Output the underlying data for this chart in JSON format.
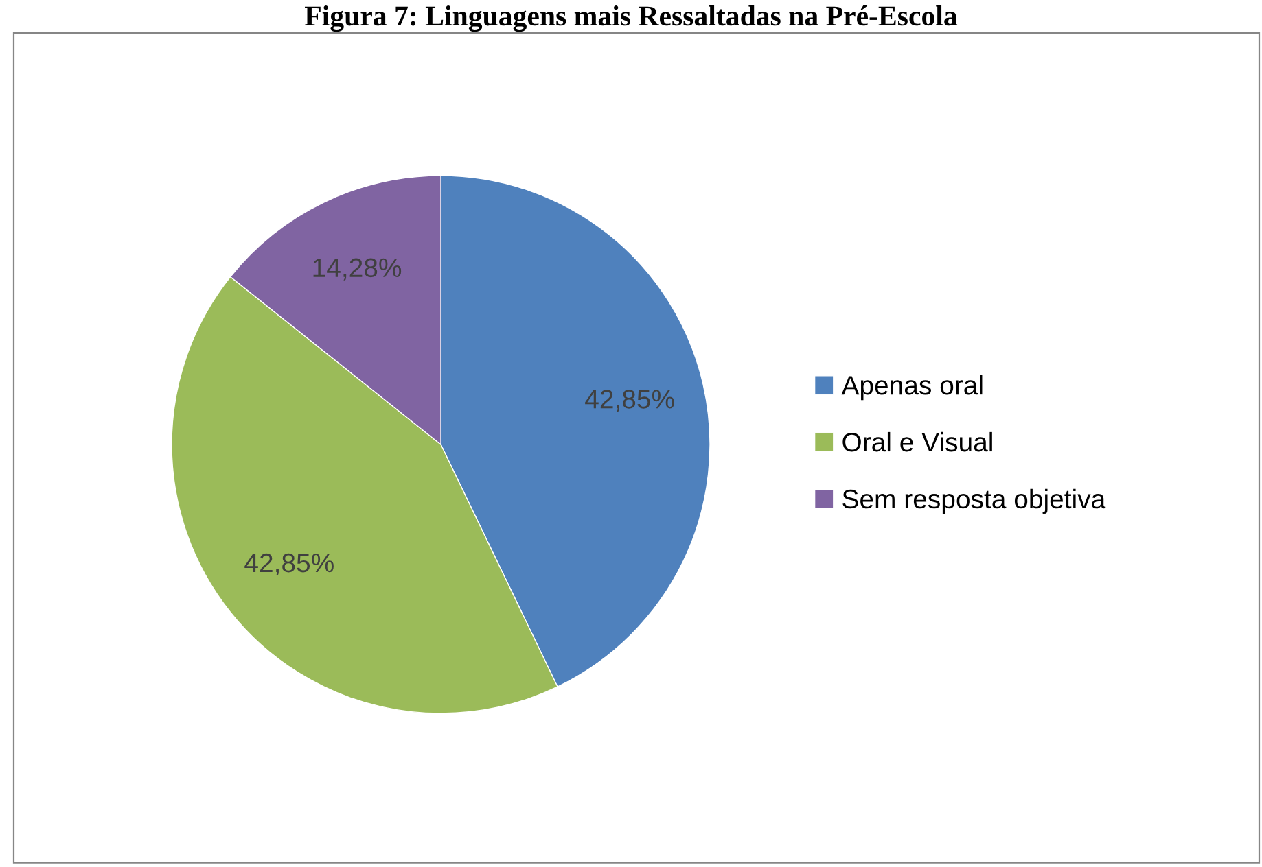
{
  "chart_data": {
    "type": "pie",
    "title": "Figura 7: Linguagens mais Ressaltadas na Pré-Escola",
    "categories": [
      "Apenas oral",
      "Oral e Visual",
      "Sem resposta objetiva"
    ],
    "values": [
      42.85,
      42.85,
      14.28
    ],
    "value_labels": [
      "42,85%",
      "42,85%",
      "14,28%"
    ],
    "colors": [
      "#4f81bd",
      "#9bbb59",
      "#8064a2"
    ],
    "legend": "right"
  }
}
